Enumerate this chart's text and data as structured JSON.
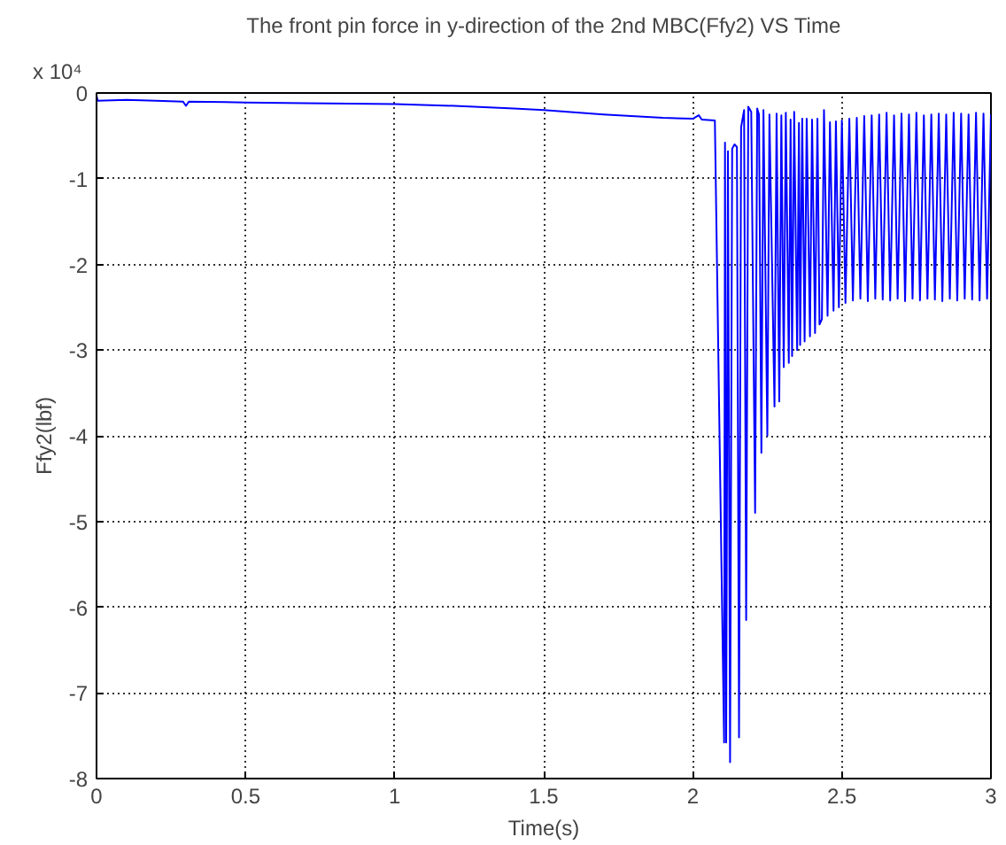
{
  "chart_data": {
    "type": "line",
    "title": "The front pin force in y-direction of the 2nd MBC(Ffy2) VS Time",
    "xlabel": "Time(s)",
    "ylabel": "Ffy2(lbf)",
    "annotations": [
      "x 10⁴"
    ],
    "xlim": [
      0,
      3
    ],
    "xticks": [
      0,
      0.5,
      1,
      1.5,
      2,
      2.5,
      3
    ],
    "ylim": [
      -8,
      0
    ],
    "yticks": [
      -8,
      -7,
      -6,
      -5,
      -4,
      -3,
      -2,
      -1,
      0
    ],
    "grid": true,
    "series": [
      {
        "color": "#0000ff",
        "x": [
          0,
          0.004,
          0.1,
          0.2,
          0.29,
          0.3,
          0.31,
          0.5,
          0.7,
          1.0,
          1.2,
          1.4,
          1.5,
          1.7,
          1.9,
          2.0,
          2.02,
          2.03,
          2.074,
          2.105,
          2.108,
          2.112,
          2.118,
          2.125,
          2.132,
          2.14,
          2.148,
          2.155,
          2.162,
          2.172,
          2.179,
          2.186,
          2.196,
          2.209,
          2.216,
          2.222,
          2.23,
          2.237,
          2.25,
          2.257,
          2.274,
          2.281,
          2.29,
          2.297,
          2.305,
          2.312,
          2.322,
          2.328,
          2.333,
          2.34,
          2.35,
          2.356,
          2.36,
          2.367,
          2.375,
          2.382,
          2.393,
          2.4,
          2.41,
          2.418,
          2.425,
          2.433,
          2.44,
          2.452,
          2.46,
          2.472,
          2.48,
          2.49,
          2.5,
          2.512,
          2.525,
          2.537,
          2.55,
          2.562,
          2.575,
          2.587,
          2.6,
          2.612,
          2.625,
          2.637,
          2.65,
          2.662,
          2.675,
          2.687,
          2.7,
          2.712,
          2.725,
          2.737,
          2.75,
          2.762,
          2.775,
          2.787,
          2.8,
          2.812,
          2.825,
          2.837,
          2.85,
          2.862,
          2.875,
          2.887,
          2.9,
          2.912,
          2.925,
          2.937,
          2.95,
          2.962,
          2.975,
          2.987,
          3.0
        ],
        "values": [
          -0.03,
          -0.09,
          -0.08,
          -0.09,
          -0.1,
          -0.15,
          -0.1,
          -0.11,
          -0.12,
          -0.13,
          -0.15,
          -0.18,
          -0.2,
          -0.25,
          -0.29,
          -0.3,
          -0.26,
          -0.31,
          -0.32,
          -7.58,
          -0.58,
          -7.58,
          -0.68,
          -7.81,
          -0.65,
          -0.6,
          -0.63,
          -7.52,
          -0.4,
          -0.2,
          -6.15,
          -0.16,
          -0.22,
          -4.9,
          -0.18,
          -0.25,
          -4.2,
          -0.2,
          -4.0,
          -0.25,
          -3.66,
          -0.24,
          -3.6,
          -0.26,
          -3.2,
          -0.23,
          -3.15,
          -0.31,
          -3.07,
          -0.22,
          -3.0,
          -0.35,
          -2.94,
          -0.3,
          -2.9,
          -0.3,
          -2.84,
          -0.31,
          -2.8,
          -0.3,
          -2.7,
          -2.64,
          -0.2,
          -2.6,
          -0.34,
          -2.54,
          -0.33,
          -2.5,
          -0.32,
          -2.45,
          -0.3,
          -2.42,
          -0.29,
          -2.4,
          -0.27,
          -2.43,
          -0.26,
          -2.4,
          -0.25,
          -2.41,
          -0.23,
          -2.42,
          -0.26,
          -2.4,
          -0.24,
          -2.43,
          -0.25,
          -2.4,
          -0.23,
          -2.42,
          -0.26,
          -2.4,
          -0.25,
          -2.41,
          -0.24,
          -2.43,
          -0.25,
          -2.4,
          -0.23,
          -2.42,
          -0.24,
          -2.4,
          -0.25,
          -2.41,
          -0.23,
          -2.42,
          -0.24,
          -2.4,
          -0.25
        ]
      }
    ]
  }
}
